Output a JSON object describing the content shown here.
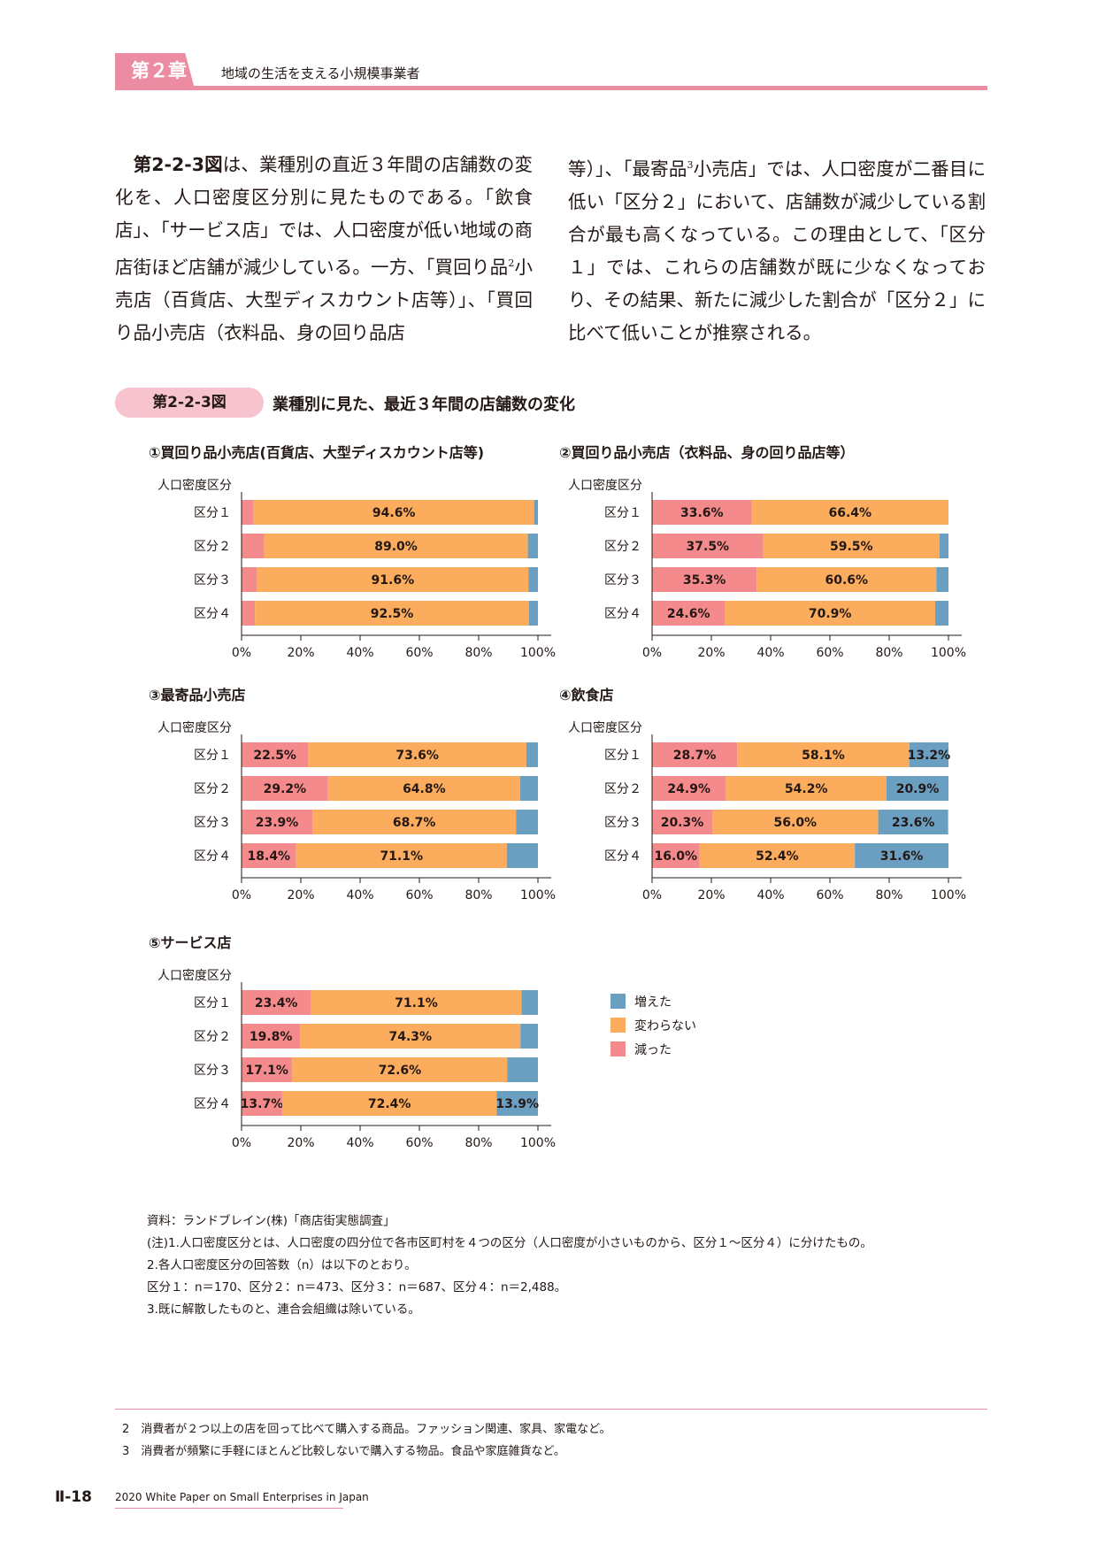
{
  "header": {
    "chapter": "第２章",
    "subtitle": "地域の生活を支える小規模事業者"
  },
  "body": {
    "left_ref": "第2-2-3図",
    "left_text": "は、業種別の直近３年間の店舗数の変化を、人口密度区分別に見たものである。「飲食店」、「サービス店」では、人口密度が低い地域の商店街ほど店舗が減少している。一方、「買回り品",
    "left_fn": "2",
    "left_text2": "小売店（百貨店、大型ディスカウント店等）」、「買回り品小売店（衣料品、身の回り品店",
    "right_text": "等）」、「最寄品",
    "right_fn": "3",
    "right_text2": "小売店」では、人口密度が二番目に低い「区分２」において、店舗数が減少している割合が最も高くなっている。この理由として、「区分１」では、これらの店舗数が既に少なくなっており、その結果、新たに減少した割合が「区分２」に比べて低いことが推察される。"
  },
  "figure": {
    "badge": "第2-2-3図",
    "title": "業種別に見た、最近３年間の店舗数の変化"
  },
  "colors": {
    "decreased": "#f48a8c",
    "unchanged": "#fbac5c",
    "increased": "#6b9fc2",
    "accent": "#ec8ca3"
  },
  "legend": {
    "increased": "増えた",
    "unchanged": "変わらない",
    "decreased": "減った"
  },
  "chart_data": [
    {
      "type": "bar",
      "title": "①買回り品小売店(百貨店、大型ディスカウント店等)",
      "ylabel": "人口密度区分",
      "categories": [
        "区分１",
        "区分２",
        "区分３",
        "区分４"
      ],
      "xlim": [
        0,
        100
      ],
      "xticks": [
        "0%",
        "20%",
        "40%",
        "60%",
        "80%",
        "100%"
      ],
      "series": [
        {
          "name": "減った",
          "values": [
            4.1,
            7.6,
            5.2,
            4.5
          ],
          "labels": [
            "",
            "",
            "",
            ""
          ]
        },
        {
          "name": "変わらない",
          "values": [
            94.6,
            89.0,
            91.6,
            92.5
          ],
          "labels": [
            "94.6%",
            "89.0%",
            "91.6%",
            "92.5%"
          ]
        },
        {
          "name": "増えた",
          "values": [
            1.3,
            3.4,
            3.2,
            3.0
          ],
          "labels": [
            "",
            "",
            "",
            ""
          ]
        }
      ]
    },
    {
      "type": "bar",
      "title": "②買回り品小売店（衣料品、身の回り品店等）",
      "ylabel": "人口密度区分",
      "categories": [
        "区分１",
        "区分２",
        "区分３",
        "区分４"
      ],
      "xlim": [
        0,
        100
      ],
      "xticks": [
        "0%",
        "20%",
        "40%",
        "60%",
        "80%",
        "100%"
      ],
      "series": [
        {
          "name": "減った",
          "values": [
            33.6,
            37.5,
            35.3,
            24.6
          ],
          "labels": [
            "33.6%",
            "37.5%",
            "35.3%",
            "24.6%"
          ]
        },
        {
          "name": "変わらない",
          "values": [
            66.4,
            59.5,
            60.6,
            70.9
          ],
          "labels": [
            "66.4%",
            "59.5%",
            "60.6%",
            "70.9%"
          ]
        },
        {
          "name": "増えた",
          "values": [
            0.0,
            3.0,
            4.1,
            4.5
          ],
          "labels": [
            "",
            "",
            "",
            ""
          ]
        }
      ]
    },
    {
      "type": "bar",
      "title": "③最寄品小売店",
      "ylabel": "人口密度区分",
      "categories": [
        "区分１",
        "区分２",
        "区分３",
        "区分４"
      ],
      "xlim": [
        0,
        100
      ],
      "xticks": [
        "0%",
        "20%",
        "40%",
        "60%",
        "80%",
        "100%"
      ],
      "series": [
        {
          "name": "減った",
          "values": [
            22.5,
            29.2,
            23.9,
            18.4
          ],
          "labels": [
            "22.5%",
            "29.2%",
            "23.9%",
            "18.4%"
          ]
        },
        {
          "name": "変わらない",
          "values": [
            73.6,
            64.8,
            68.7,
            71.1
          ],
          "labels": [
            "73.6%",
            "64.8%",
            "68.7%",
            "71.1%"
          ]
        },
        {
          "name": "増えた",
          "values": [
            3.9,
            6.0,
            7.4,
            10.5
          ],
          "labels": [
            "",
            "",
            "",
            ""
          ]
        }
      ]
    },
    {
      "type": "bar",
      "title": "④飲食店",
      "ylabel": "人口密度区分",
      "categories": [
        "区分１",
        "区分２",
        "区分３",
        "区分４"
      ],
      "xlim": [
        0,
        100
      ],
      "xticks": [
        "0%",
        "20%",
        "40%",
        "60%",
        "80%",
        "100%"
      ],
      "series": [
        {
          "name": "減った",
          "values": [
            28.7,
            24.9,
            20.3,
            16.0
          ],
          "labels": [
            "28.7%",
            "24.9%",
            "20.3%",
            "16.0%"
          ]
        },
        {
          "name": "変わらない",
          "values": [
            58.1,
            54.2,
            56.0,
            52.4
          ],
          "labels": [
            "58.1%",
            "54.2%",
            "56.0%",
            "52.4%"
          ]
        },
        {
          "name": "増えた",
          "values": [
            13.2,
            20.9,
            23.6,
            31.6
          ],
          "labels": [
            "13.2%",
            "20.9%",
            "23.6%",
            "31.6%"
          ]
        }
      ]
    },
    {
      "type": "bar",
      "title": "⑤サービス店",
      "ylabel": "人口密度区分",
      "categories": [
        "区分１",
        "区分２",
        "区分３",
        "区分４"
      ],
      "xlim": [
        0,
        100
      ],
      "xticks": [
        "0%",
        "20%",
        "40%",
        "60%",
        "80%",
        "100%"
      ],
      "series": [
        {
          "name": "減った",
          "values": [
            23.4,
            19.8,
            17.1,
            13.7
          ],
          "labels": [
            "23.4%",
            "19.8%",
            "17.1%",
            "13.7%"
          ]
        },
        {
          "name": "変わらない",
          "values": [
            71.1,
            74.3,
            72.6,
            72.4
          ],
          "labels": [
            "71.1%",
            "74.3%",
            "72.6%",
            "72.4%"
          ]
        },
        {
          "name": "増えた",
          "values": [
            5.5,
            5.9,
            10.3,
            13.9
          ],
          "labels": [
            "",
            "",
            "",
            "13.9%"
          ]
        }
      ]
    }
  ],
  "notes": {
    "source": "資料：ランドブレイン(株)「商店街実態調査」",
    "n1": "(注)1.人口密度区分とは、人口密度の四分位で各市区町村を４つの区分（人口密度が小さいものから、区分１～区分４）に分けたもの。",
    "n2": "2.各人口密度区分の回答数（n）は以下のとおり。",
    "n3": "区分１：n＝170、区分２：n＝473、区分３：n＝687、区分４：n＝2,488。",
    "n4": "3.既に解散したものと、連合会組織は除いている。"
  },
  "footnotes": {
    "f2": "2　消費者が２つ以上の店を回って比べて購入する商品。ファッション関連、家具、家電など。",
    "f3": "3　消費者が頻繁に手軽にほとんど比較しないで購入する物品。食品や家庭雑貨など。"
  },
  "footer": {
    "page": "Ⅱ-18",
    "publication": "2020 White Paper on Small Enterprises in Japan"
  }
}
